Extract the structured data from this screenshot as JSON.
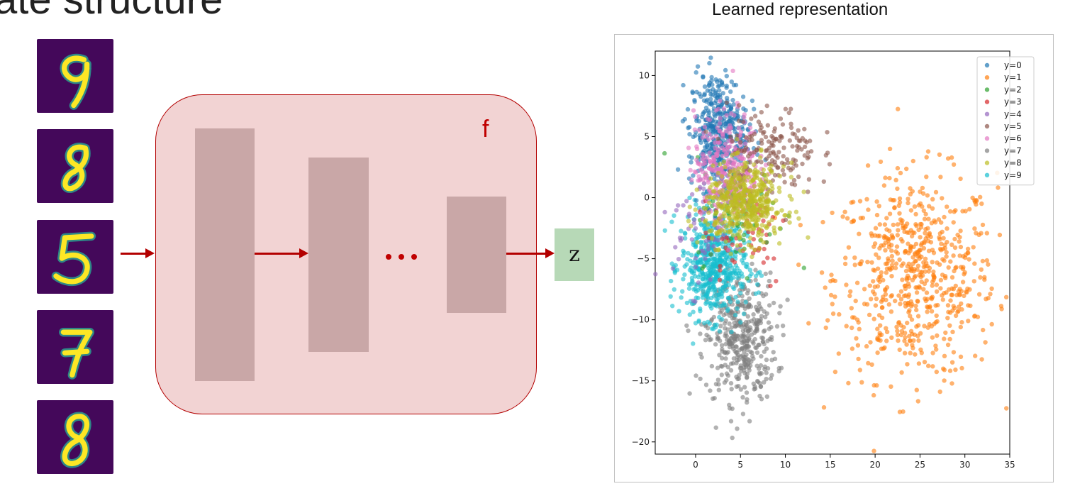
{
  "slide": {
    "title": "ate structure"
  },
  "encoder": {
    "function_label": "f",
    "output_label": "z",
    "ellipsis": "..."
  },
  "digits": [
    {
      "label": "9"
    },
    {
      "label": "8"
    },
    {
      "label": "5"
    },
    {
      "label": "7"
    },
    {
      "label": "8"
    }
  ],
  "colors": {
    "tile_background": "#44085a",
    "stroke": "#fde725",
    "arrow": "#b30000",
    "encoder_fill": "#f2d3d3",
    "layer_fill": "#c9a7a7",
    "z_fill": "#b7d9b7"
  },
  "chart_heading": "Learned representation",
  "chart_data": {
    "type": "scatter",
    "title": "",
    "xlabel": "",
    "ylabel": "",
    "xlim": [
      -4.5,
      35
    ],
    "ylim": [
      -21,
      12
    ],
    "xticks": [
      0,
      5,
      10,
      15,
      20,
      25,
      30,
      35
    ],
    "yticks": [
      10,
      5,
      0,
      -5,
      -10,
      -15,
      -20
    ],
    "xtick_labels": [
      "0",
      "5",
      "10",
      "15",
      "20",
      "25",
      "30",
      "35"
    ],
    "ytick_labels": [
      "10",
      "5",
      "0",
      "−5",
      "−10",
      "−15",
      "−20"
    ],
    "grid": false,
    "legend_position": "top-right",
    "series": [
      {
        "name": "y=0",
        "color": "#1f77b4",
        "center": [
          2.5,
          5.5
        ],
        "spread": [
          1.6,
          2.4
        ],
        "count": 420
      },
      {
        "name": "y=1",
        "color": "#ff7f0e",
        "center": [
          24.5,
          -6.5
        ],
        "spread": [
          4.5,
          4.2
        ],
        "count": 650
      },
      {
        "name": "y=2",
        "color": "#2ca02c",
        "center": [
          5.0,
          -1.0
        ],
        "spread": [
          2.5,
          2.2
        ],
        "count": 60
      },
      {
        "name": "y=3",
        "color": "#d62728",
        "center": [
          5.5,
          -2.5
        ],
        "spread": [
          2.5,
          2.5
        ],
        "count": 60
      },
      {
        "name": "y=4",
        "color": "#9467bd",
        "center": [
          0.5,
          -2.5
        ],
        "spread": [
          1.5,
          2.5
        ],
        "count": 60
      },
      {
        "name": "y=5",
        "color": "#8c564b",
        "center": [
          8.5,
          3.8
        ],
        "spread": [
          2.5,
          1.8
        ],
        "count": 160
      },
      {
        "name": "y=6",
        "color": "#e377c2",
        "center": [
          3.5,
          2.5
        ],
        "spread": [
          1.8,
          2.2
        ],
        "count": 330
      },
      {
        "name": "y=7",
        "color": "#7f7f7f",
        "center": [
          5.0,
          -11.5
        ],
        "spread": [
          2.0,
          2.6
        ],
        "count": 420
      },
      {
        "name": "y=8",
        "color": "#bcbd22",
        "center": [
          5.5,
          -0.5
        ],
        "spread": [
          2.2,
          1.6
        ],
        "count": 480
      },
      {
        "name": "y=9",
        "color": "#17becf",
        "center": [
          2.0,
          -5.5
        ],
        "spread": [
          1.8,
          2.2
        ],
        "count": 560
      }
    ]
  }
}
